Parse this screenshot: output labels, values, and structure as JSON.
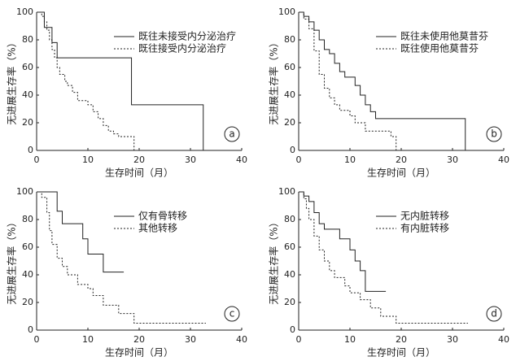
{
  "chart_data": [
    {
      "type": "line",
      "step": true,
      "panel_label": "a",
      "x_label": "生存时间（月）",
      "y_label": "无进展生存率（%）",
      "xlim": [
        0,
        40
      ],
      "xticks": [
        0,
        10,
        20,
        30,
        40
      ],
      "ylim": [
        0,
        100
      ],
      "yticks": [
        0,
        20,
        40,
        60,
        80,
        100
      ],
      "legend": "top-right",
      "series": [
        {
          "name": "既往未接受内分泌治疗",
          "color": "#222222",
          "line_style": "solid",
          "x": [
            0,
            1.5,
            3,
            4,
            18.5,
            32.5
          ],
          "values": [
            100,
            89,
            78,
            67,
            33,
            0
          ]
        },
        {
          "name": "既往接受内分泌治疗",
          "color": "#222222",
          "line_style": "dashed",
          "x": [
            0,
            1,
            1.5,
            2,
            2.5,
            3,
            3.5,
            4,
            4.5,
            5.5,
            6,
            7,
            8,
            10,
            11,
            12,
            13,
            14,
            15,
            16,
            19
          ],
          "values": [
            100,
            97,
            93,
            87,
            80,
            73,
            67,
            60,
            55,
            50,
            47,
            42,
            36,
            33,
            28,
            23,
            18,
            14,
            12,
            10,
            0
          ]
        }
      ]
    },
    {
      "type": "line",
      "step": true,
      "panel_label": "b",
      "x_label": "生存时间（月）",
      "y_label": "无进展生存率（%）",
      "xlim": [
        0,
        40
      ],
      "xticks": [
        0,
        10,
        20,
        30,
        40
      ],
      "ylim": [
        0,
        100
      ],
      "yticks": [
        0,
        20,
        40,
        60,
        80,
        100
      ],
      "legend": "top-right",
      "series": [
        {
          "name": "既往未使用他莫昔芬",
          "color": "#222222",
          "line_style": "solid",
          "x": [
            0,
            1,
            2,
            3,
            4,
            5,
            6,
            7,
            8,
            9,
            11,
            12,
            13,
            14,
            15,
            32.5
          ],
          "values": [
            100,
            97,
            93,
            87,
            80,
            73,
            70,
            63,
            57,
            53,
            47,
            40,
            33,
            28,
            23,
            0
          ]
        },
        {
          "name": "既往使用他莫昔芬",
          "color": "#222222",
          "line_style": "dashed",
          "x": [
            0,
            1,
            2,
            3,
            4,
            5,
            6,
            7,
            8,
            10,
            11,
            13,
            18,
            19
          ],
          "values": [
            100,
            95,
            88,
            72,
            55,
            45,
            38,
            33,
            29,
            25,
            20,
            14,
            10,
            0
          ]
        }
      ]
    },
    {
      "type": "line",
      "step": true,
      "panel_label": "c",
      "x_label": "生存时间（月）",
      "y_label": "无进展生存率（%）",
      "xlim": [
        0,
        40
      ],
      "xticks": [
        0,
        10,
        20,
        30,
        40
      ],
      "ylim": [
        0,
        100
      ],
      "yticks": [
        0,
        20,
        40,
        60,
        80,
        100
      ],
      "legend": "top-right",
      "series": [
        {
          "name": "仅有骨转移",
          "color": "#222222",
          "line_style": "solid",
          "x": [
            0,
            4,
            5,
            9,
            10,
            13,
            17
          ],
          "values": [
            100,
            86,
            77,
            66,
            55,
            42,
            42
          ]
        },
        {
          "name": "其他转移",
          "color": "#222222",
          "line_style": "dashed",
          "x": [
            0,
            1,
            2,
            2.5,
            3,
            4,
            5,
            6,
            8,
            10,
            11,
            13,
            16,
            19,
            33
          ],
          "values": [
            100,
            96,
            85,
            72,
            62,
            52,
            46,
            40,
            33,
            30,
            25,
            18,
            12,
            5,
            5
          ]
        }
      ]
    },
    {
      "type": "line",
      "step": true,
      "panel_label": "d",
      "x_label": "生存时间（月）",
      "y_label": "无进展生存率（%）",
      "xlim": [
        0,
        40
      ],
      "xticks": [
        0,
        10,
        20,
        30,
        40
      ],
      "ylim": [
        0,
        100
      ],
      "yticks": [
        0,
        20,
        40,
        60,
        80,
        100
      ],
      "legend": "top-right",
      "series": [
        {
          "name": "无内脏转移",
          "color": "#222222",
          "line_style": "solid",
          "x": [
            0,
            1,
            2,
            3,
            4,
            5,
            8,
            10,
            11,
            12,
            13,
            17
          ],
          "values": [
            100,
            97,
            93,
            85,
            77,
            73,
            66,
            58,
            50,
            43,
            28,
            28
          ]
        },
        {
          "name": "有内脏转移",
          "color": "#222222",
          "line_style": "dashed",
          "x": [
            0,
            1,
            1.5,
            2,
            3,
            4,
            5,
            6,
            7,
            9,
            10,
            12,
            14,
            16,
            19,
            33
          ],
          "values": [
            100,
            95,
            88,
            80,
            68,
            58,
            50,
            43,
            38,
            32,
            27,
            22,
            16,
            10,
            5,
            5
          ]
        }
      ]
    }
  ]
}
